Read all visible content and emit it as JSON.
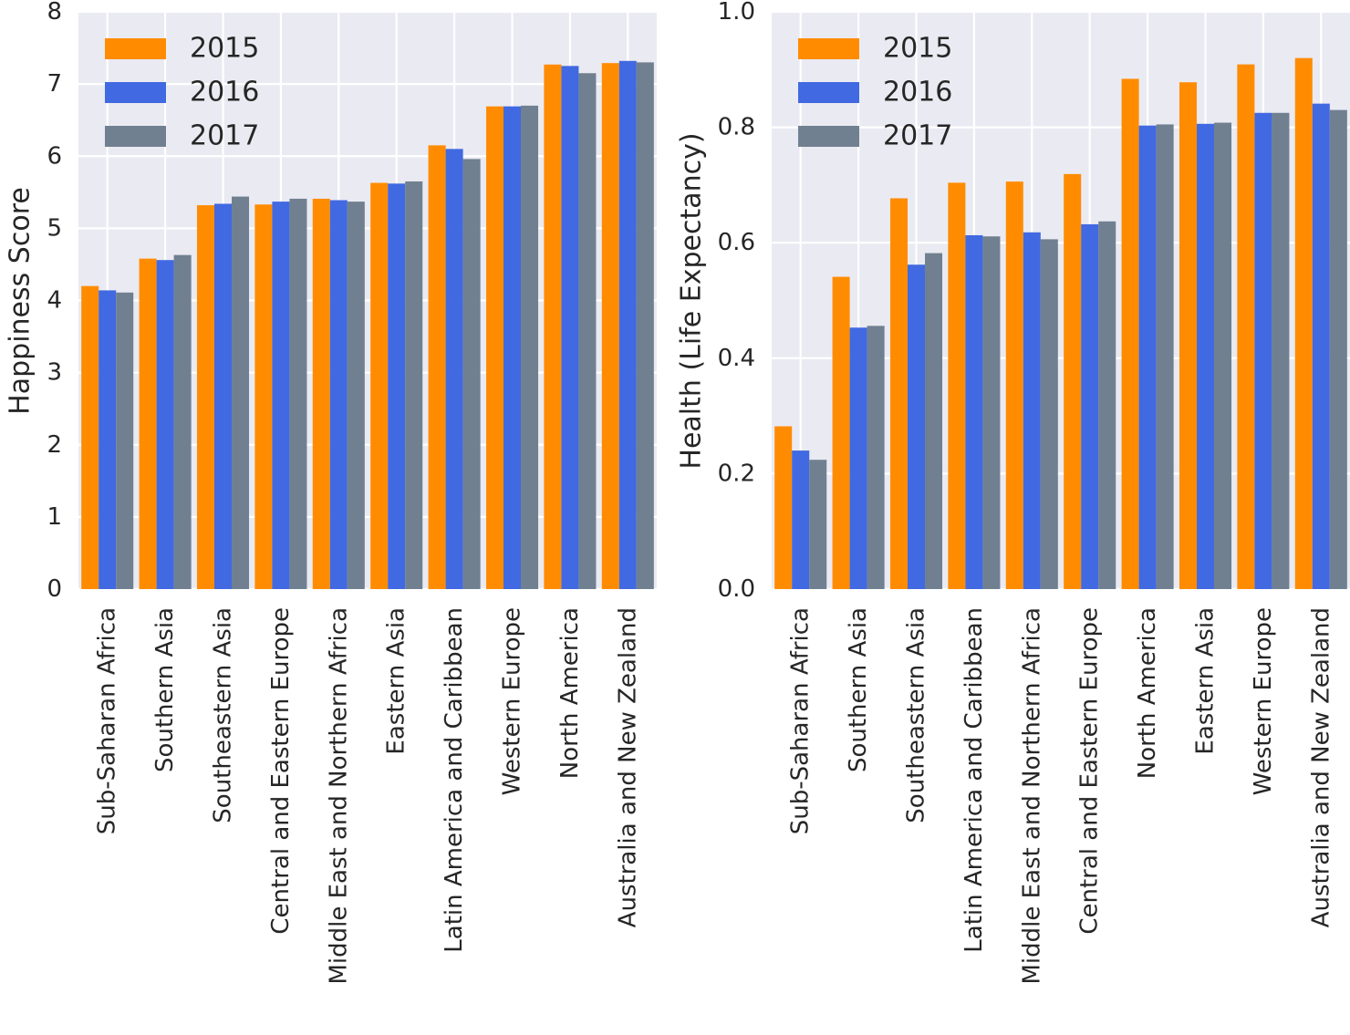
{
  "chart_data": [
    {
      "type": "bar",
      "title": "",
      "xlabel": "",
      "ylabel": "Happiness Score",
      "ylim": [
        0,
        8
      ],
      "yticks": [
        "0",
        "1",
        "2",
        "3",
        "4",
        "5",
        "6",
        "7",
        "8"
      ],
      "grid": true,
      "legend_position": "top-left",
      "categories": [
        "Sub-Saharan Africa",
        "Southern Asia",
        "Southeastern Asia",
        "Central and Eastern Europe",
        "Middle East and Northern Africa",
        "Eastern Asia",
        "Latin America and Caribbean",
        "Western Europe",
        "North America",
        "Australia and New Zealand"
      ],
      "series": [
        {
          "name": "2015",
          "color": "#ff8c00",
          "values": [
            4.2,
            4.58,
            5.32,
            5.33,
            5.41,
            5.63,
            6.15,
            6.69,
            7.27,
            7.29
          ]
        },
        {
          "name": "2016",
          "color": "#4169e1",
          "values": [
            4.14,
            4.56,
            5.34,
            5.37,
            5.39,
            5.62,
            6.1,
            6.69,
            7.25,
            7.32
          ]
        },
        {
          "name": "2017",
          "color": "#708090",
          "values": [
            4.11,
            4.63,
            5.44,
            5.41,
            5.37,
            5.65,
            5.96,
            6.7,
            7.15,
            7.3
          ]
        }
      ]
    },
    {
      "type": "bar",
      "title": "",
      "xlabel": "",
      "ylabel": "Health (Life Expectancy)",
      "ylim": [
        0,
        1.0
      ],
      "yticks": [
        "0.0",
        "0.2",
        "0.4",
        "0.6",
        "0.8",
        "1.0"
      ],
      "grid": true,
      "legend_position": "top-left",
      "categories": [
        "Sub-Saharan Africa",
        "Southern Asia",
        "Southeastern Asia",
        "Latin America and Caribbean",
        "Middle East and Northern Africa",
        "Central and Eastern Europe",
        "North America",
        "Eastern Asia",
        "Western Europe",
        "Australia and New Zealand"
      ],
      "series": [
        {
          "name": "2015",
          "color": "#ff8c00",
          "values": [
            0.282,
            0.541,
            0.677,
            0.704,
            0.706,
            0.719,
            0.884,
            0.878,
            0.909,
            0.92
          ]
        },
        {
          "name": "2016",
          "color": "#4169e1",
          "values": [
            0.24,
            0.453,
            0.562,
            0.613,
            0.618,
            0.632,
            0.803,
            0.806,
            0.825,
            0.841
          ]
        },
        {
          "name": "2017",
          "color": "#708090",
          "values": [
            0.224,
            0.456,
            0.582,
            0.611,
            0.606,
            0.637,
            0.805,
            0.808,
            0.825,
            0.83
          ]
        }
      ]
    }
  ]
}
